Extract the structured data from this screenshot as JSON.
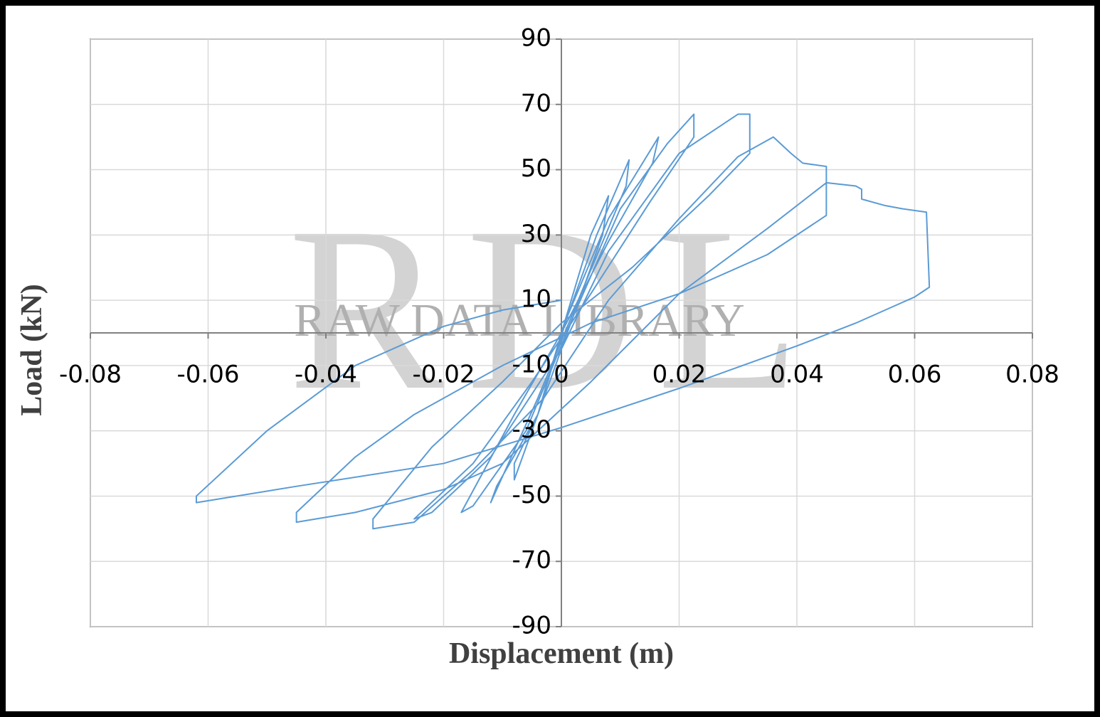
{
  "chart_data": {
    "type": "line",
    "xlabel": "Displacement (m)",
    "ylabel": "Load (kN)",
    "watermark": {
      "letters": "RDL",
      "text": "RAW DATA LIBRARY"
    },
    "xlim": [
      -0.08,
      0.08
    ],
    "xticks": [
      -0.08,
      -0.06,
      -0.04,
      -0.02,
      0,
      0.02,
      0.04,
      0.06,
      0.08
    ],
    "ylim": [
      -90,
      90
    ],
    "yticks": [
      90,
      70,
      50,
      30,
      10,
      -10,
      -30,
      -50,
      -70,
      -90
    ],
    "grid": true,
    "series": [
      {
        "name": "Load",
        "color": "#5b9bd5",
        "x": [
          0,
          0.005,
          0.008,
          0.007,
          0.002,
          -0.003,
          -0.008,
          -0.008,
          -0.004,
          0,
          0.006,
          0.0115,
          0.011,
          0.004,
          -0.004,
          -0.012,
          -0.011,
          -0.004,
          0.001,
          0.008,
          0.0165,
          0.0155,
          0.008,
          0,
          -0.008,
          -0.017,
          -0.015,
          -0.006,
          0.002,
          0.01,
          0.018,
          0.0225,
          0.0225,
          0.015,
          0.005,
          -0.005,
          -0.015,
          -0.025,
          -0.022,
          -0.012,
          0,
          0.008,
          0.02,
          0.03,
          0.032,
          0.032,
          0.025,
          0.012,
          0,
          -0.01,
          -0.022,
          -0.032,
          -0.032,
          -0.025,
          -0.015,
          -0.003,
          0.008,
          0.02,
          0.03,
          0.036,
          0.039,
          0.041,
          0.045,
          0.045,
          0.035,
          0.02,
          0.005,
          -0.01,
          -0.025,
          -0.035,
          -0.045,
          -0.045,
          -0.035,
          -0.02,
          -0.01,
          0.005,
          0.02,
          0.035,
          0.045,
          0.05,
          0.051,
          0.051,
          0.055,
          0.058,
          0.062,
          0.0625,
          0.06,
          0.05,
          0.04,
          0.02,
          0,
          -0.02,
          -0.045,
          -0.062,
          -0.062,
          -0.05,
          -0.035,
          -0.02,
          -0.01,
          0
        ],
        "values": [
          0,
          30,
          42,
          30,
          5,
          -20,
          -45,
          -40,
          -25,
          0,
          30,
          53,
          45,
          15,
          -20,
          -52,
          -47,
          -25,
          5,
          35,
          60,
          52,
          28,
          0,
          -25,
          -55,
          -53,
          -30,
          5,
          38,
          58,
          67,
          60,
          40,
          12,
          -15,
          -40,
          -57,
          -55,
          -38,
          -5,
          25,
          55,
          67,
          67,
          55,
          42,
          20,
          3,
          -15,
          -35,
          -57,
          -60,
          -58,
          -42,
          -20,
          10,
          35,
          54,
          60,
          55,
          52,
          51,
          36,
          24,
          12,
          3,
          -10,
          -25,
          -38,
          -55,
          -58,
          -55,
          -48,
          -40,
          -15,
          12,
          32,
          46,
          45,
          44,
          41,
          39,
          38,
          37,
          14,
          11,
          3,
          -4,
          -17,
          -29,
          -40,
          -47,
          -52,
          -50,
          -30,
          -10,
          2,
          7,
          10
        ]
      }
    ]
  }
}
